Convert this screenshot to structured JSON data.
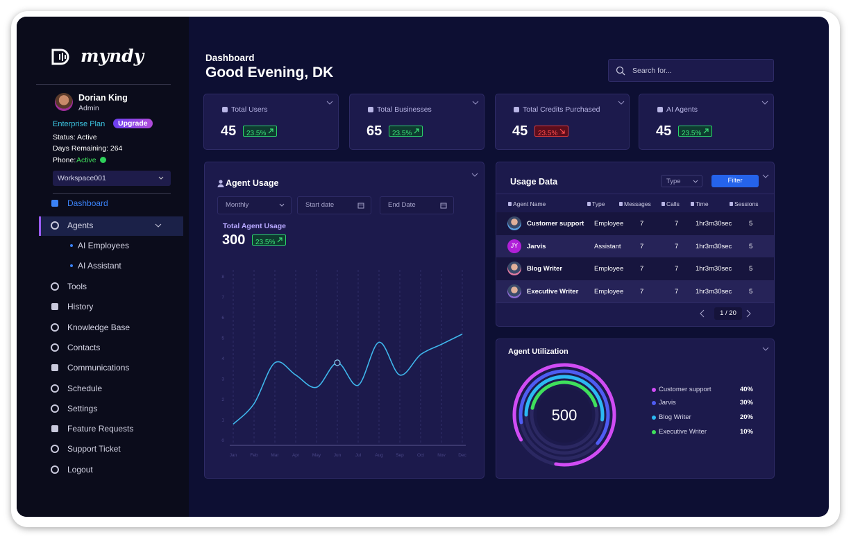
{
  "brand": "myndy",
  "profile": {
    "name": "Dorian King",
    "role": "Admin",
    "plan": "Enterprise Plan",
    "upgrade": "Upgrade",
    "status": "Status: Active",
    "days_remaining": "Days Remaining: 264",
    "phone_label": "Phone:",
    "phone_status": "Active",
    "workspace": "Workspace001"
  },
  "nav": [
    "Dashboard",
    "Agents",
    "Tools",
    "History",
    "Knowledge Base",
    "Contacts",
    "Communications",
    "Schedule",
    "Settings",
    "Feature Requests",
    "Support Ticket",
    "Logout"
  ],
  "nav_sub": [
    "AI Employees",
    "AI Assistant"
  ],
  "header": {
    "section": "Dashboard",
    "greeting": "Good Evening, DK",
    "search_placeholder": "Search for..."
  },
  "stats": [
    {
      "label": "Total Users",
      "value": 45,
      "change": "23.5%",
      "trend": "up"
    },
    {
      "label": "Total Businesses",
      "value": 65,
      "change": "23.5%",
      "trend": "up"
    },
    {
      "label": "Total Credits Purchased",
      "value": 45,
      "change": "23.5%",
      "trend": "down"
    },
    {
      "label": "AI Agents",
      "value": 45,
      "change": "23.5%",
      "trend": "up"
    }
  ],
  "agent_usage": {
    "title": "Agent Usage",
    "period": "Monthly",
    "start_date": "Start date",
    "end_date": "End Date",
    "total_label": "Total Agent Usage",
    "total": 300,
    "change": "23.5%"
  },
  "chart_data": {
    "type": "line",
    "categories": [
      "Jan",
      "Feb",
      "Mar",
      "Apr",
      "May",
      "Jun",
      "Jul",
      "Aug",
      "Sep",
      "Oct",
      "Nov",
      "Dec"
    ],
    "values": [
      0.8,
      1.8,
      3.8,
      3.2,
      2.6,
      3.8,
      2.7,
      4.8,
      3.2,
      4.2,
      4.7,
      5.2
    ],
    "ylim": [
      0,
      8
    ],
    "yticks": [
      0,
      1,
      2,
      3,
      4,
      5,
      6,
      7,
      8
    ],
    "color": "#3fb6ec",
    "highlight": 5
  },
  "usage_data": {
    "title": "Usage Data",
    "type_filter": "Type",
    "filter_button": "Filter",
    "columns": [
      "Agent Name",
      "Type",
      "Messages",
      "Calls",
      "Time",
      "Sessions"
    ],
    "rows": [
      {
        "name": "Customer support",
        "type": "Employee",
        "messages": 7,
        "calls": 7,
        "time": "1hr3m30sec",
        "sessions": 5
      },
      {
        "name": "Jarvis",
        "initials": "JY",
        "type": "Assistant",
        "messages": 7,
        "calls": 7,
        "time": "1hr3m30sec",
        "sessions": 5
      },
      {
        "name": "Blog Writer",
        "type": "Employee",
        "messages": 7,
        "calls": 7,
        "time": "1hr3m30sec",
        "sessions": 5
      },
      {
        "name": "Executive Writer",
        "type": "Employee",
        "messages": 7,
        "calls": 7,
        "time": "1hr3m30sec",
        "sessions": 5
      }
    ],
    "pagination": "1 / 20"
  },
  "agent_utilization": {
    "title": "Agent Utilization",
    "total": 500,
    "items": [
      {
        "name": "Customer support",
        "share": "40%",
        "color": "#d04cf4"
      },
      {
        "name": "Jarvis",
        "share": "30%",
        "color": "#4f5cf2"
      },
      {
        "name": "Blog Writer",
        "share": "20%",
        "color": "#2cb8f2"
      },
      {
        "name": "Executive Writer",
        "share": "10%",
        "color": "#3fe05c"
      }
    ]
  }
}
